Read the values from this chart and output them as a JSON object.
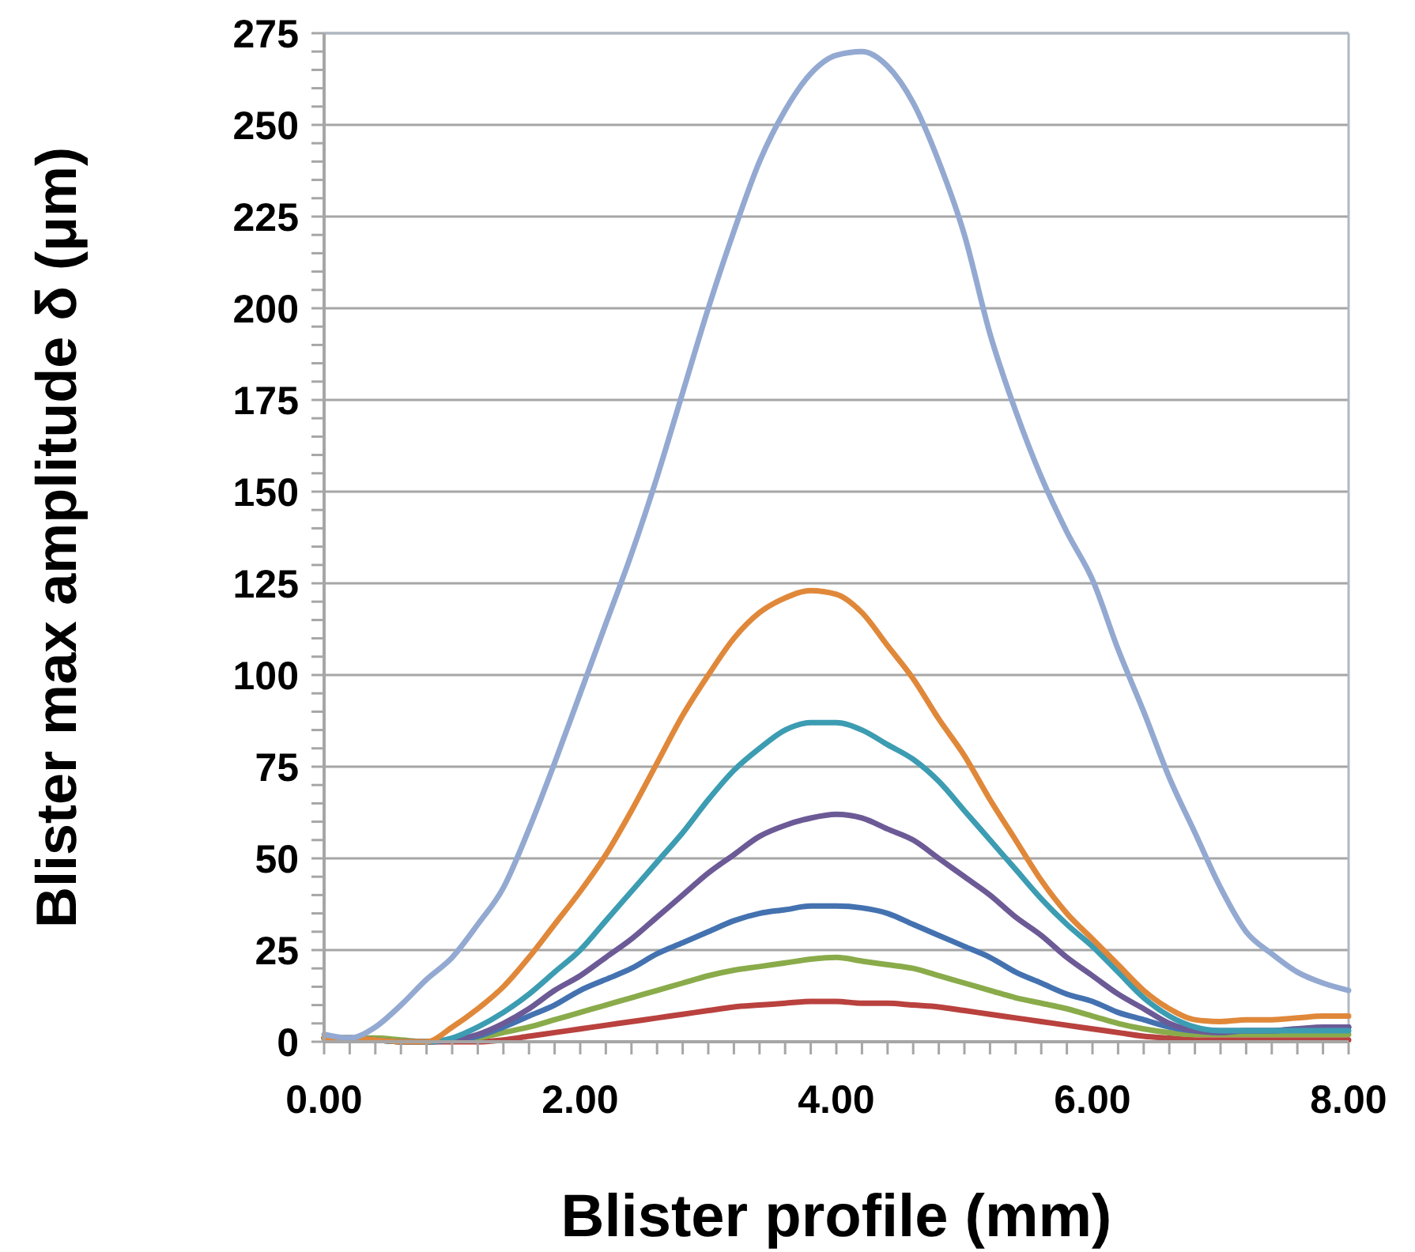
{
  "chart_data": {
    "type": "line",
    "xlabel": "Blister profile (mm)",
    "ylabel": "Blister max amplitude δ (μm)",
    "x": [
      0,
      0.2,
      0.4,
      0.6,
      0.8,
      1.0,
      1.2,
      1.4,
      1.6,
      1.8,
      2.0,
      2.2,
      2.4,
      2.6,
      2.8,
      3.0,
      3.2,
      3.4,
      3.6,
      3.8,
      4.0,
      4.2,
      4.4,
      4.6,
      4.8,
      5.0,
      5.2,
      5.4,
      5.6,
      5.8,
      6.0,
      6.2,
      6.4,
      6.6,
      6.8,
      7.0,
      7.2,
      7.4,
      7.6,
      7.8,
      8.0
    ],
    "series": [
      {
        "color": "#b9413e",
        "values": [
          1,
          0.5,
          0.5,
          0,
          0,
          0,
          0,
          0.5,
          1.5,
          2.5,
          3.5,
          4.5,
          5.5,
          6.5,
          7.5,
          8.5,
          9.5,
          10,
          10.5,
          11,
          11,
          10.5,
          10.5,
          10,
          9.5,
          8.5,
          7.5,
          6.5,
          5.5,
          4.5,
          3.5,
          2.5,
          1.5,
          1,
          0.5,
          0.5,
          0.5,
          0.5,
          0.5,
          0.5,
          0.5
        ]
      },
      {
        "color": "#8aab4a",
        "values": [
          1,
          1,
          1,
          0.5,
          0,
          0.5,
          1,
          2.5,
          4,
          6,
          8,
          10,
          12,
          14,
          16,
          18,
          19.5,
          20.5,
          21.5,
          22.5,
          23,
          22,
          21,
          20,
          18,
          16,
          14,
          12,
          10.5,
          9,
          7,
          5,
          3.5,
          2.5,
          2,
          2,
          2,
          2,
          2,
          2,
          2
        ]
      },
      {
        "color": "#4472b0",
        "values": [
          1,
          1,
          0.5,
          0,
          0,
          0.5,
          1.5,
          4,
          7,
          10,
          14,
          17,
          20,
          24,
          27,
          30,
          33,
          35,
          36,
          37,
          37,
          36.5,
          35,
          32,
          29,
          26,
          23,
          19,
          16,
          13,
          11,
          8,
          6,
          4,
          3,
          3,
          3,
          3,
          3.5,
          3.5,
          4
        ]
      },
      {
        "color": "#6c5a96",
        "values": [
          1,
          1,
          0.5,
          0,
          0,
          0.5,
          2,
          5,
          9,
          14,
          18,
          23,
          28,
          34,
          40,
          46,
          51,
          56,
          59,
          61,
          62,
          61,
          58,
          55,
          50,
          45,
          40,
          34,
          29,
          23,
          18,
          13,
          9,
          5,
          3,
          2.5,
          3,
          3,
          3.5,
          4,
          4
        ]
      },
      {
        "color": "#3c9cb2",
        "values": [
          1,
          1,
          0.5,
          0,
          0,
          1,
          4,
          8,
          13,
          19,
          25,
          33,
          41,
          49,
          57,
          66,
          74,
          80,
          85,
          87,
          87,
          85,
          81,
          77,
          71,
          63,
          55,
          47,
          39,
          32,
          26,
          19,
          12,
          7,
          4,
          3,
          3,
          3,
          3,
          3,
          3
        ]
      },
      {
        "color": "#e0883a",
        "values": [
          1,
          1,
          0.5,
          0,
          0,
          4,
          9,
          15,
          23,
          32,
          41,
          51,
          63,
          76,
          89,
          100,
          110,
          117,
          121,
          123,
          122,
          117,
          108,
          99,
          88,
          78,
          66,
          55,
          44,
          35,
          28,
          21,
          14,
          9,
          6,
          5.5,
          6,
          6,
          6.5,
          7,
          7
        ]
      },
      {
        "color": "#93a9d1",
        "values": [
          2,
          1,
          4,
          10,
          17,
          23,
          32,
          42,
          58,
          76,
          95,
          114,
          133,
          154,
          177,
          200,
          221,
          240,
          254,
          264,
          269,
          270,
          266,
          256,
          240,
          220,
          193,
          172,
          154,
          139,
          126,
          107,
          90,
          72,
          57,
          42,
          30,
          24,
          19,
          16,
          14
        ]
      }
    ],
    "xlim": [
      0,
      8
    ],
    "xticks": [
      {
        "value": 0,
        "label": "0.00"
      },
      {
        "value": 0.2,
        "label": null
      },
      {
        "value": 0.4,
        "label": null
      },
      {
        "value": 0.6,
        "label": null
      },
      {
        "value": 0.8,
        "label": null
      },
      {
        "value": 1,
        "label": null
      },
      {
        "value": 1.2,
        "label": null
      },
      {
        "value": 1.4,
        "label": null
      },
      {
        "value": 1.6,
        "label": null
      },
      {
        "value": 1.8,
        "label": null
      },
      {
        "value": 2,
        "label": "2.00"
      },
      {
        "value": 2.2,
        "label": null
      },
      {
        "value": 2.4,
        "label": null
      },
      {
        "value": 2.6,
        "label": null
      },
      {
        "value": 2.8,
        "label": null
      },
      {
        "value": 3,
        "label": null
      },
      {
        "value": 3.2,
        "label": null
      },
      {
        "value": 3.4,
        "label": null
      },
      {
        "value": 3.6,
        "label": null
      },
      {
        "value": 3.8,
        "label": null
      },
      {
        "value": 4,
        "label": "4.00"
      },
      {
        "value": 4.2,
        "label": null
      },
      {
        "value": 4.4,
        "label": null
      },
      {
        "value": 4.6,
        "label": null
      },
      {
        "value": 4.8,
        "label": null
      },
      {
        "value": 5,
        "label": null
      },
      {
        "value": 5.2,
        "label": null
      },
      {
        "value": 5.4,
        "label": null
      },
      {
        "value": 5.6,
        "label": null
      },
      {
        "value": 5.8,
        "label": null
      },
      {
        "value": 6,
        "label": "6.00"
      },
      {
        "value": 6.2,
        "label": null
      },
      {
        "value": 6.4,
        "label": null
      },
      {
        "value": 6.6,
        "label": null
      },
      {
        "value": 6.8,
        "label": null
      },
      {
        "value": 7,
        "label": null
      },
      {
        "value": 7.2,
        "label": null
      },
      {
        "value": 7.4,
        "label": null
      },
      {
        "value": 7.6,
        "label": null
      },
      {
        "value": 7.8,
        "label": null
      },
      {
        "value": 8,
        "label": "8.00"
      }
    ],
    "ylim": [
      0,
      275
    ],
    "yticks": [
      0,
      {
        "value": 5,
        "label": null
      },
      {
        "value": 10,
        "label": null
      },
      {
        "value": 15,
        "label": null
      },
      {
        "value": 20,
        "label": null
      },
      25,
      {
        "value": 30,
        "label": null
      },
      {
        "value": 35,
        "label": null
      },
      {
        "value": 40,
        "label": null
      },
      {
        "value": 45,
        "label": null
      },
      50,
      {
        "value": 55,
        "label": null
      },
      {
        "value": 60,
        "label": null
      },
      {
        "value": 65,
        "label": null
      },
      {
        "value": 70,
        "label": null
      },
      75,
      {
        "value": 80,
        "label": null
      },
      {
        "value": 85,
        "label": null
      },
      {
        "value": 90,
        "label": null
      },
      {
        "value": 95,
        "label": null
      },
      100,
      {
        "value": 105,
        "label": null
      },
      {
        "value": 110,
        "label": null
      },
      {
        "value": 115,
        "label": null
      },
      {
        "value": 120,
        "label": null
      },
      125,
      {
        "value": 130,
        "label": null
      },
      {
        "value": 135,
        "label": null
      },
      {
        "value": 140,
        "label": null
      },
      {
        "value": 145,
        "label": null
      },
      150,
      {
        "value": 155,
        "label": null
      },
      {
        "value": 160,
        "label": null
      },
      {
        "value": 165,
        "label": null
      },
      {
        "value": 170,
        "label": null
      },
      175,
      {
        "value": 180,
        "label": null
      },
      {
        "value": 185,
        "label": null
      },
      {
        "value": 190,
        "label": null
      },
      {
        "value": 195,
        "label": null
      },
      200,
      {
        "value": 205,
        "label": null
      },
      {
        "value": 210,
        "label": null
      },
      {
        "value": 215,
        "label": null
      },
      {
        "value": 220,
        "label": null
      },
      225,
      {
        "value": 230,
        "label": null
      },
      {
        "value": 235,
        "label": null
      },
      {
        "value": 240,
        "label": null
      },
      {
        "value": 245,
        "label": null
      },
      250,
      {
        "value": 255,
        "label": null
      },
      {
        "value": 260,
        "label": null
      },
      {
        "value": 265,
        "label": null
      },
      {
        "value": 270,
        "label": null
      },
      275
    ],
    "grid": "y",
    "marker": "none",
    "line_style": "solid"
  }
}
